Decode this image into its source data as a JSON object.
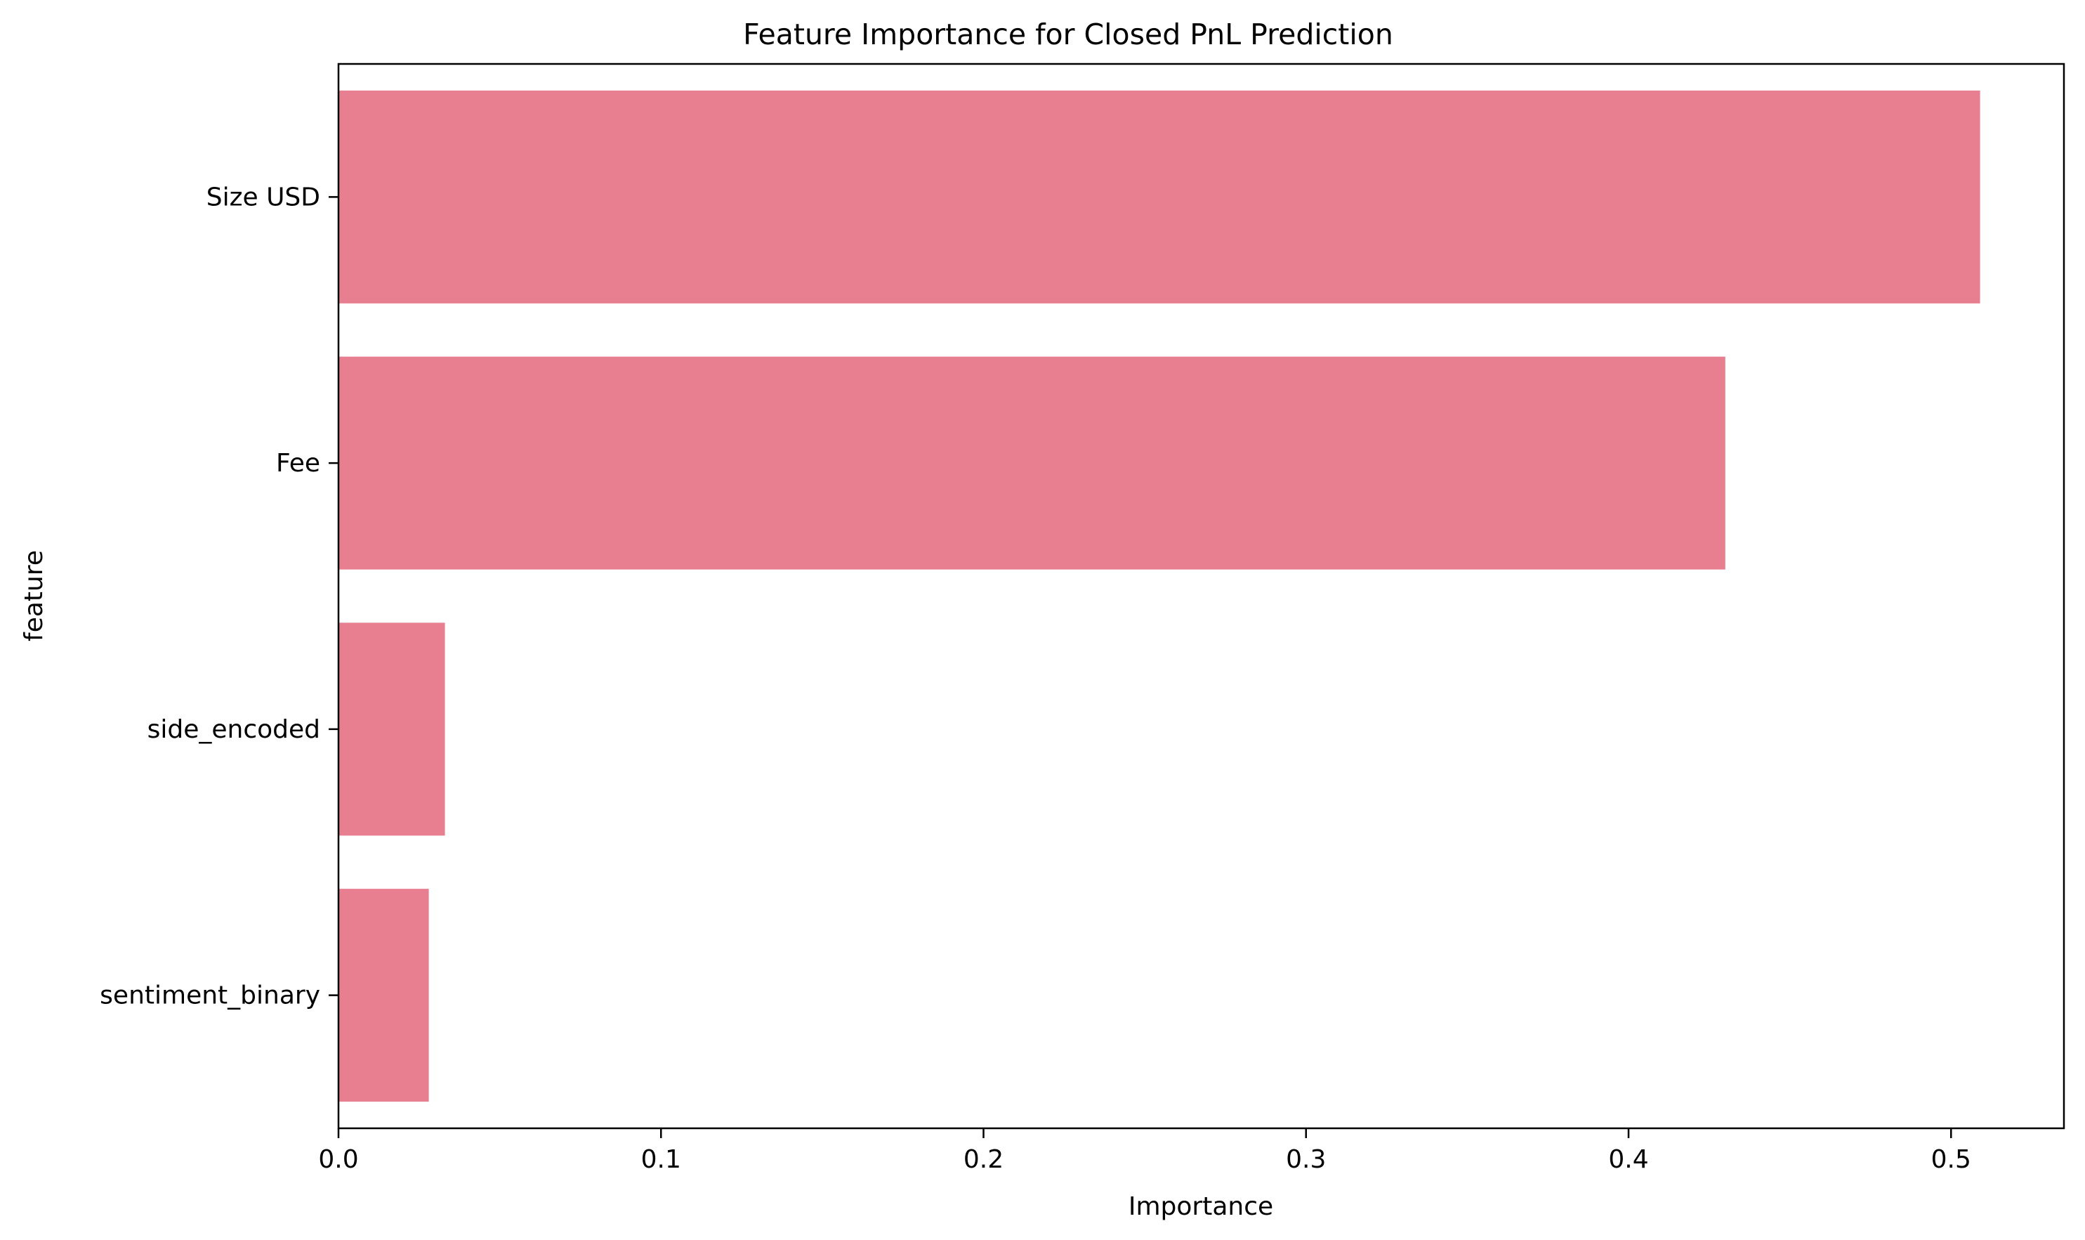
{
  "chart_data": {
    "type": "bar",
    "orientation": "horizontal",
    "title": "Feature Importance for Closed PnL Prediction",
    "xlabel": "Importance",
    "ylabel": "feature",
    "categories": [
      "Size USD",
      "Fee",
      "side_encoded",
      "sentiment_binary"
    ],
    "values": [
      0.509,
      0.43,
      0.033,
      0.028
    ],
    "xlim": [
      0,
      0.535
    ],
    "xticks": [
      0.0,
      0.1,
      0.2,
      0.3,
      0.4,
      0.5
    ],
    "xtick_labels": [
      "0.0",
      "0.1",
      "0.2",
      "0.3",
      "0.4",
      "0.5"
    ],
    "bar_color": "#e87f91",
    "grid": false,
    "legend": "none"
  }
}
